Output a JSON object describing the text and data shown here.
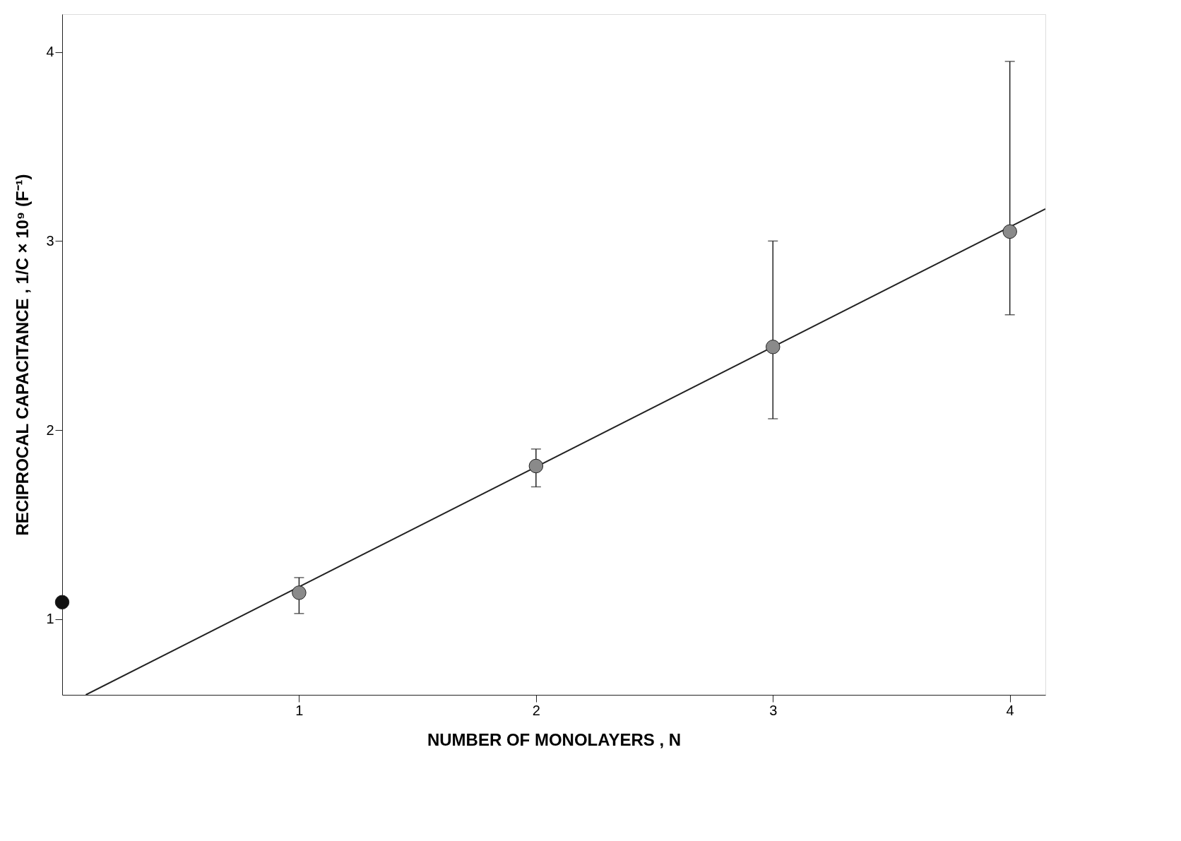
{
  "chart_data": {
    "type": "scatter",
    "xlabel": "NUMBER OF MONOLAYERS , N",
    "ylabel": "RECIPROCAL CAPACITANCE , 1/C × 10⁹ (F⁻¹)",
    "xlim": [
      0,
      4.15
    ],
    "ylim": [
      0.6,
      4.2
    ],
    "xticks": [
      1,
      2,
      3,
      4
    ],
    "yticks": [
      1,
      2,
      3,
      4
    ],
    "marker": "circle",
    "series": [
      {
        "type": "line",
        "marker": "none",
        "color": "#222222",
        "x": [
          0.1,
          4.15
        ],
        "values": [
          0.6,
          3.17
        ]
      },
      {
        "color": "#8a8a8a",
        "x": [
          1,
          2,
          3,
          4
        ],
        "values": [
          1.14,
          1.81,
          2.44,
          3.05
        ],
        "errors": [
          [
            1.03,
            1.22
          ],
          [
            1.7,
            1.9
          ],
          [
            2.06,
            3.0
          ],
          [
            2.61,
            3.95
          ]
        ]
      },
      {
        "color": "#111111",
        "x": [
          0
        ],
        "values": [
          1.09
        ]
      }
    ]
  }
}
